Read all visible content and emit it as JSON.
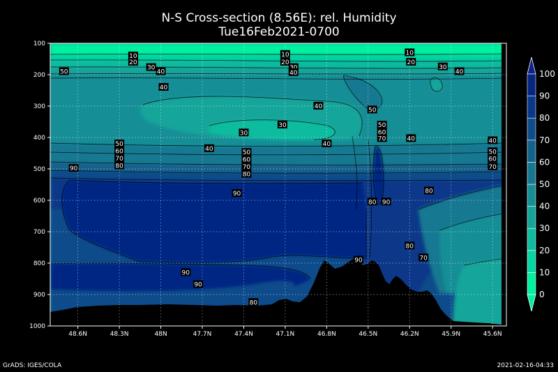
{
  "chart_data": {
    "type": "heatmap",
    "title": "N-S Cross-section (8.56E): rel. Humidity",
    "subtitle": "Tue16Feb2021-0700",
    "x_tick_labels": [
      "48.6N",
      "48.3N",
      "48N",
      "47.7N",
      "47.4N",
      "47.1N",
      "46.8N",
      "46.5N",
      "46.2N",
      "45.9N",
      "45.6N"
    ],
    "x_ticks": [
      48.6,
      48.3,
      48.0,
      47.7,
      47.4,
      47.1,
      46.8,
      46.5,
      46.2,
      45.9,
      45.6
    ],
    "xlim": [
      48.8,
      45.5
    ],
    "y_tick_labels": [
      "100",
      "200",
      "300",
      "400",
      "500",
      "600",
      "700",
      "800",
      "900",
      "1000"
    ],
    "ylim": [
      100,
      1000
    ],
    "grid": true,
    "colorbar": {
      "levels": [
        0,
        10,
        20,
        30,
        40,
        50,
        60,
        70,
        80,
        90,
        100
      ],
      "tick_labels": [
        "0",
        "10",
        "20",
        "30",
        "40",
        "50",
        "60",
        "70",
        "80",
        "90",
        "100"
      ],
      "colors": [
        "#00f0a0",
        "#06d6a2",
        "#0ebc9e",
        "#14a59a",
        "#168e96",
        "#157891",
        "#12628c",
        "#0f4c8a",
        "#0a3889",
        "#062683"
      ]
    },
    "contour_labels": [
      {
        "x": 48.7,
        "p": 190,
        "v": 50
      },
      {
        "x": 48.2,
        "p": 140,
        "v": 10
      },
      {
        "x": 48.2,
        "p": 160,
        "v": 20
      },
      {
        "x": 48.07,
        "p": 177,
        "v": 30
      },
      {
        "x": 48.0,
        "p": 190,
        "v": 40
      },
      {
        "x": 47.98,
        "p": 240,
        "v": 40
      },
      {
        "x": 47.1,
        "p": 135,
        "v": 10
      },
      {
        "x": 47.1,
        "p": 160,
        "v": 20
      },
      {
        "x": 47.04,
        "p": 177,
        "v": 30
      },
      {
        "x": 47.04,
        "p": 193,
        "v": 40
      },
      {
        "x": 46.86,
        "p": 300,
        "v": 40
      },
      {
        "x": 46.47,
        "p": 312,
        "v": 50
      },
      {
        "x": 47.12,
        "p": 360,
        "v": 30
      },
      {
        "x": 47.4,
        "p": 385,
        "v": 30
      },
      {
        "x": 46.2,
        "p": 130,
        "v": 10
      },
      {
        "x": 46.19,
        "p": 160,
        "v": 20
      },
      {
        "x": 45.96,
        "p": 175,
        "v": 30
      },
      {
        "x": 45.84,
        "p": 190,
        "v": 40
      },
      {
        "x": 48.3,
        "p": 420,
        "v": 50
      },
      {
        "x": 48.3,
        "p": 443,
        "v": 60
      },
      {
        "x": 48.3,
        "p": 467,
        "v": 70
      },
      {
        "x": 48.3,
        "p": 490,
        "v": 80
      },
      {
        "x": 47.65,
        "p": 435,
        "v": 40
      },
      {
        "x": 47.38,
        "p": 447,
        "v": 50
      },
      {
        "x": 47.38,
        "p": 470,
        "v": 60
      },
      {
        "x": 47.38,
        "p": 493,
        "v": 70
      },
      {
        "x": 47.38,
        "p": 517,
        "v": 80
      },
      {
        "x": 46.8,
        "p": 420,
        "v": 40
      },
      {
        "x": 46.4,
        "p": 360,
        "v": 50
      },
      {
        "x": 46.4,
        "p": 383,
        "v": 60
      },
      {
        "x": 46.4,
        "p": 403,
        "v": 70
      },
      {
        "x": 46.19,
        "p": 403,
        "v": 40
      },
      {
        "x": 45.6,
        "p": 410,
        "v": 40
      },
      {
        "x": 45.6,
        "p": 445,
        "v": 50
      },
      {
        "x": 45.6,
        "p": 468,
        "v": 60
      },
      {
        "x": 45.6,
        "p": 493,
        "v": 70
      },
      {
        "x": 48.63,
        "p": 498,
        "v": 90
      },
      {
        "x": 47.45,
        "p": 578,
        "v": 90
      },
      {
        "x": 46.47,
        "p": 605,
        "v": 80
      },
      {
        "x": 46.37,
        "p": 605,
        "v": 90
      },
      {
        "x": 46.06,
        "p": 570,
        "v": 80
      },
      {
        "x": 46.2,
        "p": 745,
        "v": 80
      },
      {
        "x": 46.1,
        "p": 783,
        "v": 70
      },
      {
        "x": 46.57,
        "p": 790,
        "v": 90
      },
      {
        "x": 47.82,
        "p": 830,
        "v": 90
      },
      {
        "x": 47.73,
        "p": 868,
        "v": 90
      },
      {
        "x": 47.33,
        "p": 925,
        "v": 80
      }
    ]
  },
  "footer": {
    "left": "GrADS: IGES/COLA",
    "right": "2021-02-16-04:33"
  }
}
